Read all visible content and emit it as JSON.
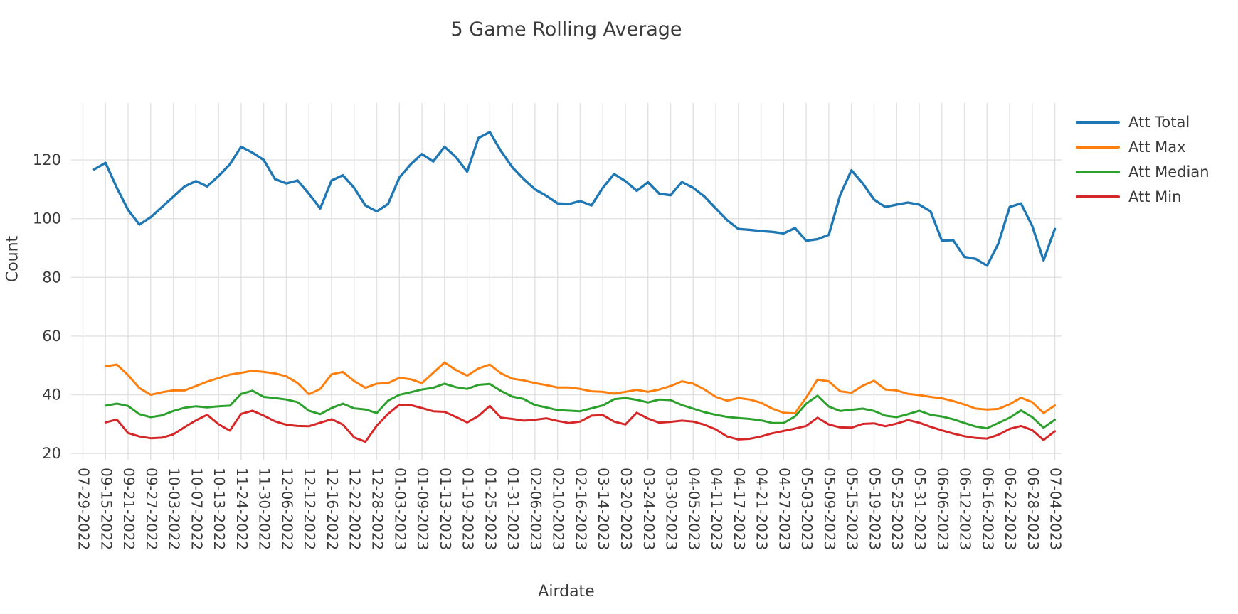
{
  "title": "5 Game Rolling Average",
  "axes": {
    "x_label": "Airdate",
    "y_label": "Count"
  },
  "legend": [
    {
      "label": "Att Total",
      "color": "#1f77b4"
    },
    {
      "label": "Att Max",
      "color": "#ff7f0e"
    },
    {
      "label": "Att Median",
      "color": "#2ca02c"
    },
    {
      "label": "Att Min",
      "color": "#d62728"
    }
  ],
  "chart_data": {
    "type": "line",
    "title": "5 Game Rolling Average",
    "xlabel": "Airdate",
    "ylabel": "Count",
    "ylim": [
      17,
      140
    ],
    "yticks": [
      20,
      40,
      60,
      80,
      100,
      120
    ],
    "grid": true,
    "legend_position": "right",
    "x_tick_labels": [
      "07-29-2022",
      "09-15-2022",
      "09-21-2022",
      "09-27-2022",
      "10-03-2022",
      "10-07-2022",
      "10-13-2022",
      "11-24-2022",
      "11-30-2022",
      "12-06-2022",
      "12-12-2022",
      "12-16-2022",
      "12-22-2022",
      "12-28-2022",
      "01-03-2023",
      "01-09-2023",
      "01-13-2023",
      "01-19-2023",
      "01-25-2023",
      "01-31-2023",
      "02-06-2023",
      "02-10-2023",
      "02-16-2023",
      "03-14-2023",
      "03-20-2023",
      "03-24-2023",
      "03-30-2023",
      "04-05-2023",
      "04-11-2023",
      "04-17-2023",
      "04-21-2023",
      "04-27-2023",
      "05-03-2023",
      "05-09-2023",
      "05-15-2023",
      "05-19-2023",
      "05-25-2023",
      "05-31-2023",
      "06-06-2023",
      "06-12-2023",
      "06-16-2023",
      "06-22-2023",
      "06-28-2023",
      "07-04-2023"
    ],
    "points_per_tick": 2,
    "series": [
      {
        "name": "Att Total",
        "color": "#1f77b4",
        "start_tick": 0.5,
        "line_width": 3.4,
        "values": [
          116.8,
          119,
          110.5,
          103,
          98,
          100.5,
          104,
          107.5,
          111,
          112.8,
          111,
          114.5,
          118.5,
          124.5,
          122.5,
          120,
          113.5,
          112,
          113,
          108.5,
          103.5,
          113,
          114.8,
          110.5,
          104.5,
          102.5,
          105,
          114,
          118.5,
          122,
          119.5,
          124.5,
          121,
          116,
          127.5,
          129.5,
          123,
          117.5,
          113.5,
          110,
          107.8,
          105.2,
          105,
          106,
          104.5,
          110.5,
          115.2,
          112.8,
          109.5,
          112.4,
          108.5,
          108,
          112.5,
          110.5,
          107.5,
          103.5,
          99.5,
          96.5,
          96.2,
          95.8,
          95.5,
          95,
          96.8,
          92.5,
          93,
          94.5,
          108,
          116.5,
          112,
          106.5,
          104,
          104.8,
          105.5,
          104.8,
          102.5,
          92.5,
          92.7,
          87,
          86.3,
          84,
          91.5,
          104,
          105.2,
          97.5,
          85.8,
          96.5
        ]
      },
      {
        "name": "Att Max",
        "color": "#ff7f0e",
        "start_tick": 1,
        "line_width": 3,
        "values": [
          49.7,
          50.3,
          46.7,
          42.3,
          40,
          40.9,
          41.5,
          41.5,
          43,
          44.5,
          45.7,
          46.9,
          47.5,
          48.2,
          47.8,
          47.3,
          46.3,
          44,
          40.2,
          42,
          47,
          47.8,
          44.7,
          42.4,
          43.8,
          44,
          45.8,
          45.3,
          44,
          47.5,
          51,
          48.5,
          46.5,
          49,
          50.3,
          47.3,
          45.5,
          44.9,
          44,
          43.3,
          42.5,
          42.5,
          42,
          41.2,
          41,
          40.4,
          41,
          41.7,
          41,
          41.8,
          43,
          44.6,
          43.8,
          41.8,
          39.3,
          38,
          38.9,
          38.4,
          37.3,
          35.3,
          33.9,
          33.7,
          39.1,
          45.2,
          44.6,
          41.2,
          40.7,
          43.1,
          44.8,
          41.8,
          41.5,
          40.3,
          39.9,
          39.3,
          38.8,
          37.9,
          36.7,
          35.3,
          35,
          35.2,
          36.8,
          39,
          37.5,
          33.8,
          36.4
        ]
      },
      {
        "name": "Att Median",
        "color": "#2ca02c",
        "start_tick": 1,
        "line_width": 3,
        "values": [
          36.3,
          37,
          36.2,
          33.4,
          32.4,
          33,
          34.5,
          35.6,
          36.1,
          35.7,
          36.1,
          36.3,
          40.3,
          41.4,
          39.3,
          38.9,
          38.4,
          37.5,
          34.6,
          33.4,
          35.5,
          37,
          35.4,
          35,
          33.8,
          38,
          40,
          40.9,
          41.8,
          42.4,
          43.8,
          42.6,
          42,
          43.4,
          43.7,
          41.3,
          39.4,
          38.6,
          36.5,
          35.7,
          34.8,
          34.6,
          34.4,
          35.4,
          36.4,
          38.5,
          38.9,
          38.3,
          37.4,
          38.4,
          38.2,
          36.5,
          35.3,
          34.1,
          33.2,
          32.5,
          32.1,
          31.8,
          31.3,
          30.4,
          30.4,
          32.6,
          37,
          39.7,
          36,
          34.5,
          34.9,
          35.3,
          34.5,
          32.9,
          32.4,
          33.4,
          34.6,
          33.2,
          32.6,
          31.7,
          30.4,
          29.2,
          28.6,
          30.4,
          32.2,
          34.7,
          32.4,
          28.8,
          31.5
        ]
      },
      {
        "name": "Att Min",
        "color": "#d62728",
        "start_tick": 1,
        "line_width": 3,
        "values": [
          30.6,
          31.6,
          27,
          25.8,
          25.2,
          25.4,
          26.5,
          29,
          31.3,
          33.2,
          30,
          27.8,
          33.5,
          34.6,
          32.9,
          31,
          29.8,
          29.4,
          29.3,
          30.5,
          31.7,
          29.9,
          25.5,
          24,
          29.5,
          33.5,
          36.6,
          36.5,
          35.5,
          34.4,
          34.2,
          32.5,
          30.6,
          32.8,
          36.2,
          32.2,
          31.8,
          31.2,
          31.5,
          32,
          31.1,
          30.4,
          30.9,
          32.9,
          33.1,
          30.9,
          29.9,
          33.9,
          31.9,
          30.5,
          30.8,
          31.2,
          30.9,
          29.8,
          28.2,
          25.8,
          24.8,
          25,
          25.8,
          26.9,
          27.7,
          28.5,
          29.4,
          32.2,
          29.9,
          28.9,
          28.8,
          30.1,
          30.3,
          29.3,
          30.2,
          31.4,
          30.5,
          29.1,
          27.9,
          26.8,
          25.9,
          25.3,
          25.1,
          26.4,
          28.4,
          29.4,
          28,
          24.6,
          27.6
        ]
      }
    ]
  }
}
